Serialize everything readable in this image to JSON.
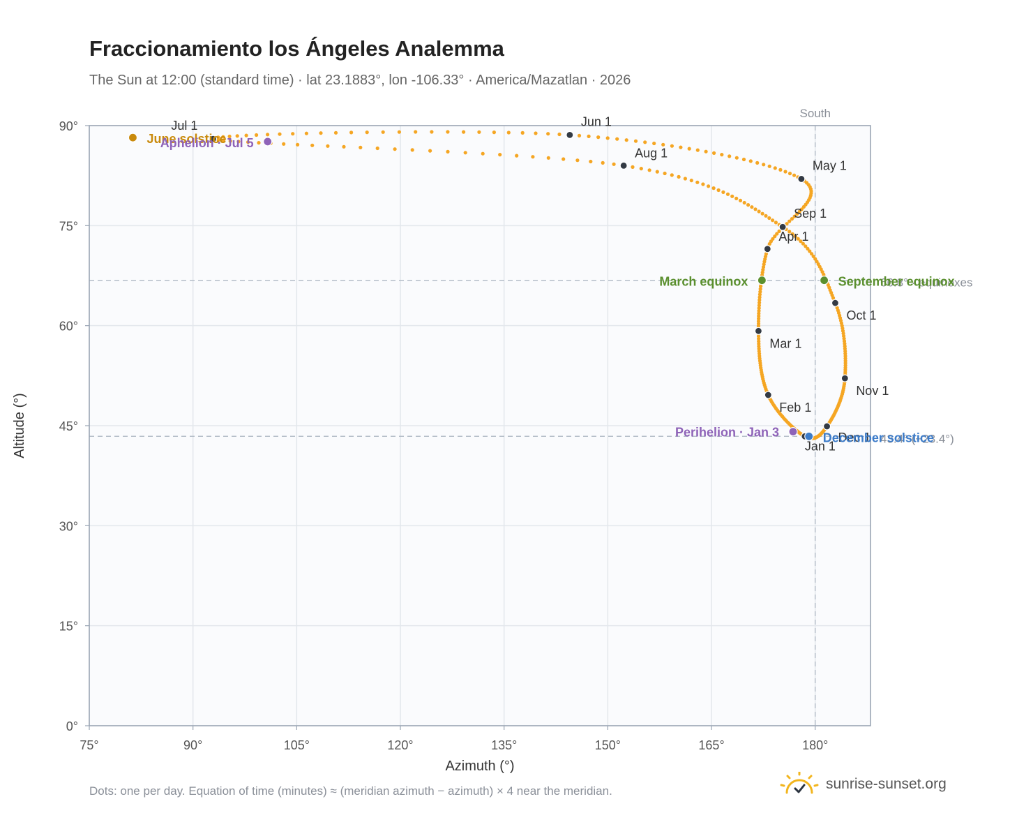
{
  "header": {
    "title": "Fraccionamiento los Ángeles Analemma",
    "subtitle": "The Sun at 12:00 (standard time) · lat 23.1883°, lon -106.33° · America/Mazatlan · 2026"
  },
  "footer": {
    "note": "Dots: one per day. Equation of time (minutes) ≈ (meridian azimuth − azimuth) × 4 near the meridian.",
    "brand": "sunrise-sunset.org"
  },
  "colors": {
    "curve": "#f5a623",
    "month_dot": "#333a44",
    "solstice_june": "#c98a0c",
    "solstice_december": "#3d7cc9",
    "equinox": "#5a8f2e",
    "apsis": "#8e63b8",
    "grid": "#e3e7ec",
    "plot_bg": "#fafbfd",
    "axis": "#9aa5b4",
    "reference": "#b5bec9"
  },
  "chart_data": {
    "type": "scatter",
    "xlabel": "Azimuth (°)",
    "ylabel": "Altitude (°)",
    "xlim": [
      75,
      188
    ],
    "ylim": [
      0,
      90
    ],
    "x_ticks": [
      75,
      90,
      105,
      120,
      135,
      150,
      165,
      180
    ],
    "y_ticks": [
      0,
      15,
      30,
      45,
      60,
      75,
      90
    ],
    "x_tick_labels": [
      "75°",
      "90°",
      "105°",
      "120°",
      "135°",
      "150°",
      "165°",
      "180°"
    ],
    "y_tick_labels": [
      "0°",
      "15°",
      "30°",
      "45°",
      "60°",
      "75°",
      "90°"
    ],
    "grid": true,
    "meridian": {
      "x": 180,
      "label": "South"
    },
    "reference_lines": [
      {
        "y": 66.8,
        "label": "66.8° · equinoxes"
      },
      {
        "y": 43.4,
        "label": "43.4° (−23.4°)"
      }
    ],
    "month_markers": [
      {
        "label": "Jan 1",
        "x": 178.5,
        "y": 43.4
      },
      {
        "label": "Feb 1",
        "x": 173.2,
        "y": 49.6
      },
      {
        "label": "Mar 1",
        "x": 171.8,
        "y": 59.2
      },
      {
        "label": "Apr 1",
        "x": 173.1,
        "y": 71.5
      },
      {
        "label": "May 1",
        "x": 178.0,
        "y": 82.0
      },
      {
        "label": "Jun 1",
        "x": 144.5,
        "y": 88.6
      },
      {
        "label": "Jul 1",
        "x": 92.9,
        "y": 88.0
      },
      {
        "label": "Aug 1",
        "x": 152.3,
        "y": 84.0
      },
      {
        "label": "Sep 1",
        "x": 175.3,
        "y": 74.8
      },
      {
        "label": "Oct 1",
        "x": 182.9,
        "y": 63.4
      },
      {
        "label": "Nov 1",
        "x": 184.3,
        "y": 52.1
      },
      {
        "label": "Dec 1",
        "x": 181.7,
        "y": 44.9
      }
    ],
    "events": [
      {
        "label": "June solstice",
        "x": 81.3,
        "y": 88.2,
        "kind": "solstice_june"
      },
      {
        "label": "December solstice",
        "x": 179.1,
        "y": 43.4,
        "kind": "solstice_december"
      },
      {
        "label": "March equinox",
        "x": 172.3,
        "y": 66.8,
        "kind": "equinox"
      },
      {
        "label": "September equinox",
        "x": 181.3,
        "y": 66.8,
        "kind": "equinox"
      },
      {
        "label": "Perihelion · Jan 3",
        "x": 176.8,
        "y": 44.1,
        "kind": "apsis"
      },
      {
        "label": "Aphelion · Jul 5",
        "x": 100.8,
        "y": 87.6,
        "kind": "apsis"
      }
    ]
  }
}
